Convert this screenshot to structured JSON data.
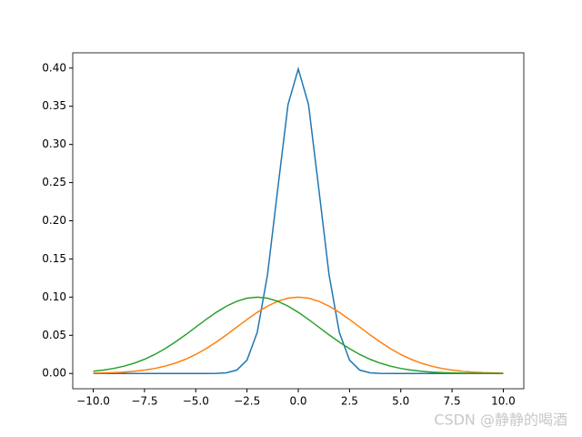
{
  "chart_data": {
    "type": "line",
    "x": [
      -10,
      -9.5,
      -9,
      -8.5,
      -8,
      -7.5,
      -7,
      -6.5,
      -6,
      -5.5,
      -5,
      -4.5,
      -4,
      -3.5,
      -3,
      -2.5,
      -2,
      -1.5,
      -1,
      -0.5,
      0,
      0.5,
      1,
      1.5,
      2,
      2.5,
      3,
      3.5,
      4,
      4.5,
      5,
      5.5,
      6,
      6.5,
      7,
      7.5,
      8,
      8.5,
      9,
      9.5,
      10
    ],
    "series": [
      {
        "color": "#1f77b4",
        "values": [
          0,
          0,
          0,
          0,
          0,
          0,
          0,
          0,
          0,
          0,
          0,
          0,
          0.0001,
          0.0009,
          0.0044,
          0.0175,
          0.054,
          0.1295,
          0.242,
          0.3521,
          0.3989,
          0.3521,
          0.242,
          0.1295,
          0.054,
          0.0175,
          0.0044,
          0.0009,
          0.0001,
          0,
          0,
          0,
          0,
          0,
          0,
          0,
          0,
          0,
          0,
          0,
          0
        ]
      },
      {
        "color": "#ff7f0e",
        "values": [
          0.0004,
          0.0007,
          0.0011,
          0.0018,
          0.0029,
          0.0044,
          0.0066,
          0.0096,
          0.0135,
          0.0186,
          0.0249,
          0.0325,
          0.0411,
          0.0506,
          0.0607,
          0.0707,
          0.0801,
          0.0882,
          0.0946,
          0.0986,
          0.1,
          0.0986,
          0.0946,
          0.0882,
          0.0801,
          0.0707,
          0.0607,
          0.0506,
          0.0411,
          0.0325,
          0.0249,
          0.0186,
          0.0135,
          0.0096,
          0.0066,
          0.0044,
          0.0029,
          0.0018,
          0.0011,
          0.0007,
          0.0004
        ]
      },
      {
        "color": "#2ca02c",
        "values": [
          0.0029,
          0.0044,
          0.0066,
          0.0096,
          0.0135,
          0.0186,
          0.0249,
          0.0325,
          0.0411,
          0.0506,
          0.0607,
          0.0707,
          0.0801,
          0.0882,
          0.0946,
          0.0986,
          0.1,
          0.0986,
          0.0946,
          0.0882,
          0.0801,
          0.0707,
          0.0607,
          0.0506,
          0.0411,
          0.0325,
          0.0249,
          0.0186,
          0.0135,
          0.0096,
          0.0066,
          0.0044,
          0.0029,
          0.0018,
          0.0011,
          0.0007,
          0.0004,
          0.0002,
          0.0001,
          0.0001,
          0
        ]
      }
    ],
    "xlim": [
      -11,
      11
    ],
    "ylim": [
      -0.02,
      0.42
    ],
    "xticks": [
      {
        "value": -10,
        "label": "−10.0"
      },
      {
        "value": -7.5,
        "label": "−7.5"
      },
      {
        "value": -5,
        "label": "−5.0"
      },
      {
        "value": -2.5,
        "label": "−2.5"
      },
      {
        "value": 0,
        "label": "0.0"
      },
      {
        "value": 2.5,
        "label": "2.5"
      },
      {
        "value": 5,
        "label": "5.0"
      },
      {
        "value": 7.5,
        "label": "7.5"
      },
      {
        "value": 10,
        "label": "10.0"
      }
    ],
    "yticks": [
      {
        "value": 0,
        "label": "0.00"
      },
      {
        "value": 0.05,
        "label": "0.05"
      },
      {
        "value": 0.1,
        "label": "0.10"
      },
      {
        "value": 0.15,
        "label": "0.15"
      },
      {
        "value": 0.2,
        "label": "0.20"
      },
      {
        "value": 0.25,
        "label": "0.25"
      },
      {
        "value": 0.3,
        "label": "0.30"
      },
      {
        "value": 0.35,
        "label": "0.35"
      },
      {
        "value": 0.4,
        "label": "0.40"
      }
    ],
    "watermark": "CSDN @静静的喝酒"
  }
}
